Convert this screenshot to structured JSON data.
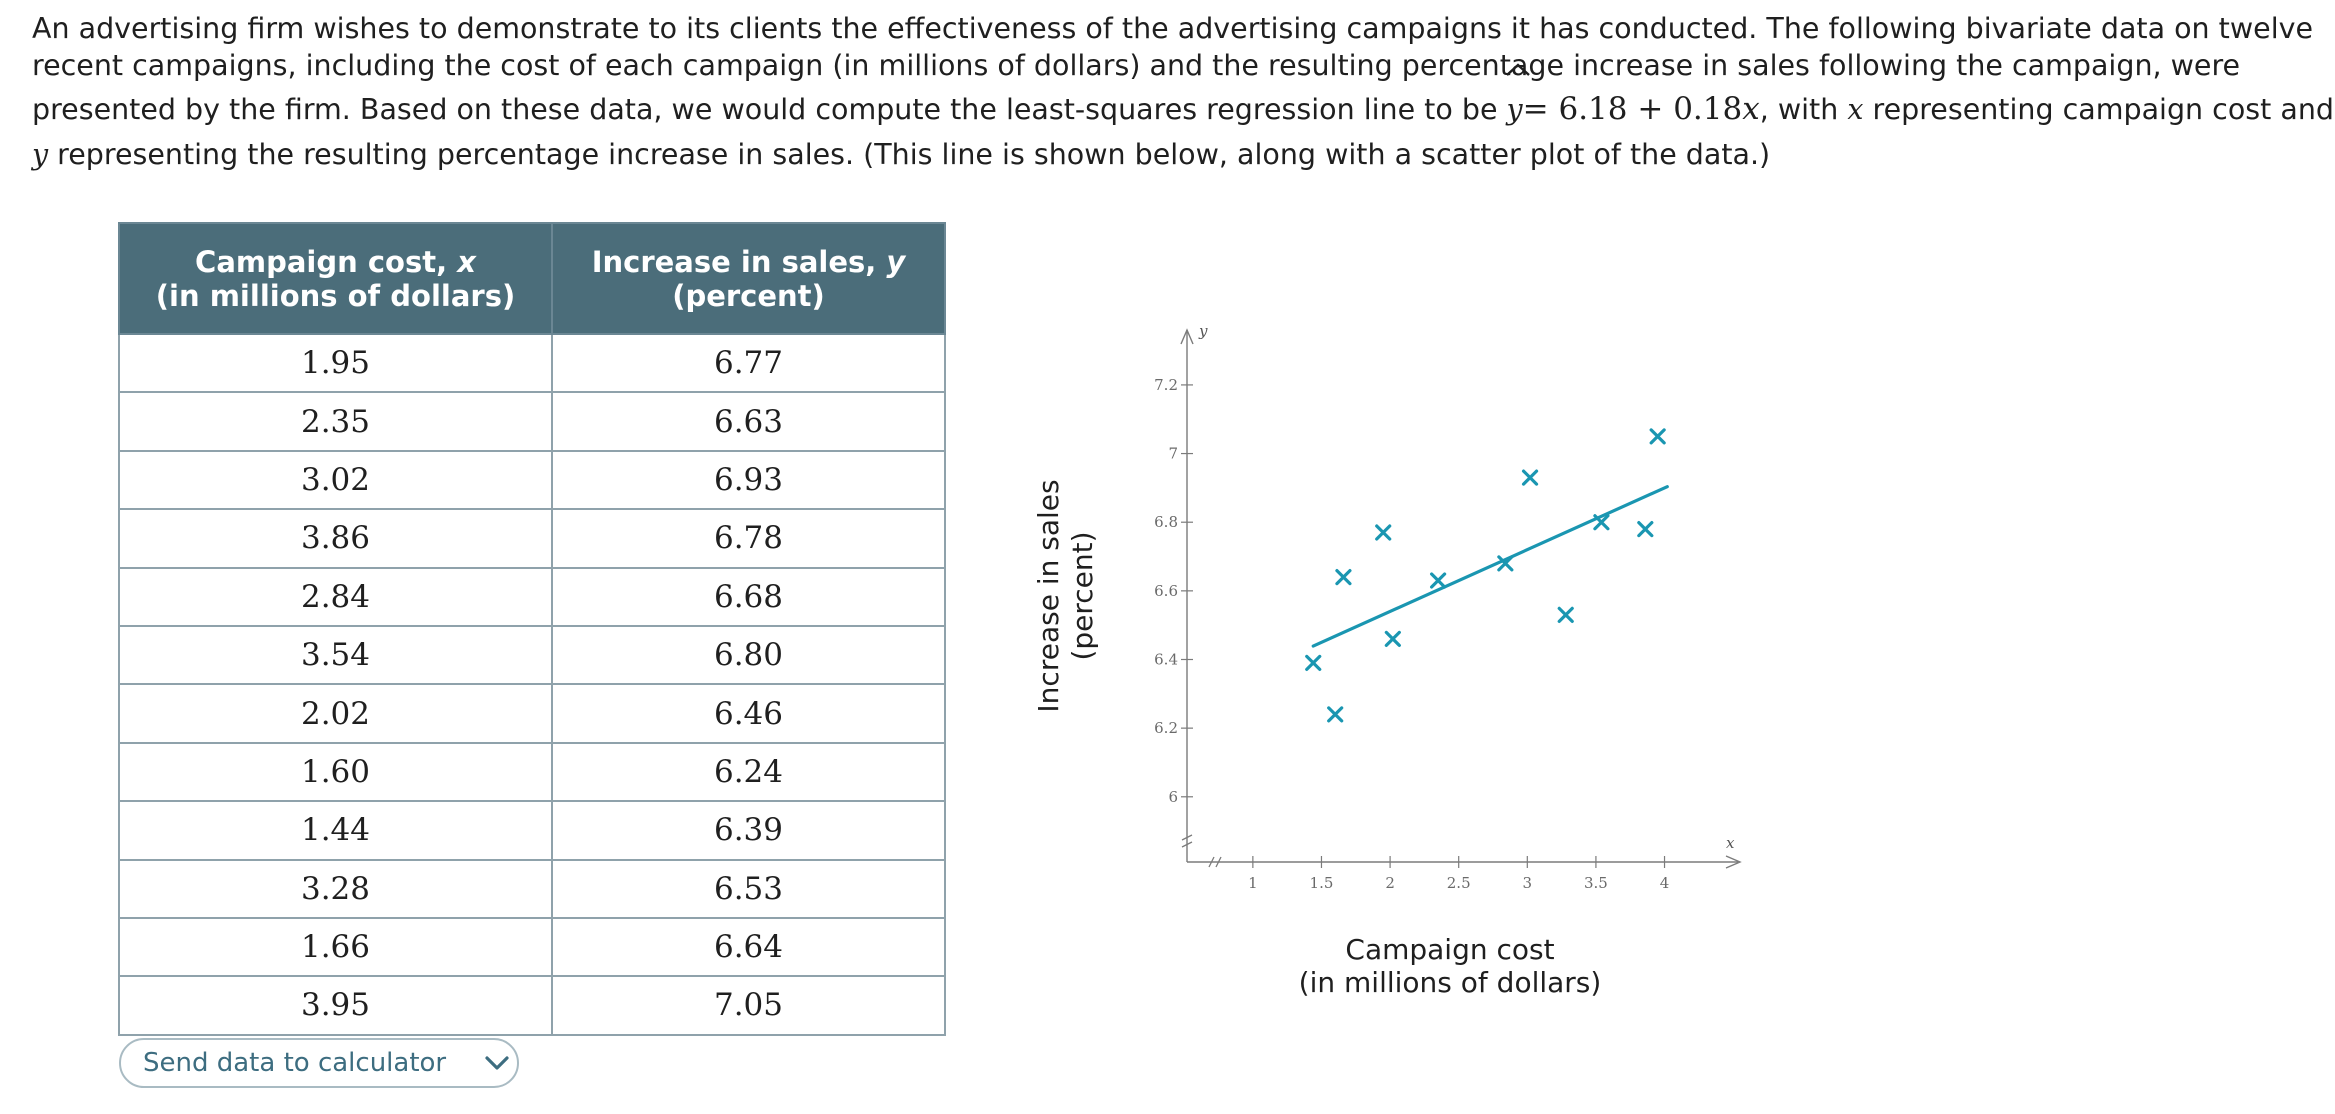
{
  "problem": {
    "line1": "An advertising firm wishes to demonstrate to its clients the effectiveness of the advertising campaigns it has conducted. The following bivariate data on twelve",
    "line2": "recent campaigns, including the cost of each campaign (in millions of dollars) and the resulting percentage increase in sales following the campaign, were",
    "line3a": "presented by the firm. Based on these data, we would compute the least-squares regression line to be",
    "yhat": "y",
    "equation": "= 6.18 + 0.18",
    "eq_var": "x",
    "line3b": ", with",
    "x_var": "x",
    "line3c": "representing campaign cost and",
    "y_var": "y",
    "line4": "representing the resulting percentage increase in sales. (This line is shown below, along with a scatter plot of the data.)"
  },
  "table": {
    "header_x_line1": "Campaign cost, ",
    "header_x_var": "x",
    "header_x_line2": "(in millions of dollars)",
    "header_y_line1": "Increase in sales, ",
    "header_y_var": "y",
    "header_y_line2": "(percent)",
    "rows": [
      {
        "x": "1.95",
        "y": "6.77"
      },
      {
        "x": "2.35",
        "y": "6.63"
      },
      {
        "x": "3.02",
        "y": "6.93"
      },
      {
        "x": "3.86",
        "y": "6.78"
      },
      {
        "x": "2.84",
        "y": "6.68"
      },
      {
        "x": "3.54",
        "y": "6.80"
      },
      {
        "x": "2.02",
        "y": "6.46"
      },
      {
        "x": "1.60",
        "y": "6.24"
      },
      {
        "x": "1.44",
        "y": "6.39"
      },
      {
        "x": "3.28",
        "y": "6.53"
      },
      {
        "x": "1.66",
        "y": "6.64"
      },
      {
        "x": "3.95",
        "y": "7.05"
      }
    ]
  },
  "send_button": {
    "label": "Send data to calculator",
    "icon": "chevron-down-icon"
  },
  "colors": {
    "accent": "#1a96b1",
    "table_header": "#4b6d7a",
    "axis": "#7b7b7b",
    "button_text": "#3d6d80"
  },
  "chart_data": {
    "type": "scatter",
    "title": "",
    "xlabel_line1": "Campaign cost",
    "xlabel_line2": "(in millions of dollars)",
    "ylabel_line1": "Increase in sales",
    "ylabel_line2": "(percent)",
    "x_axis_var": "x",
    "y_axis_var": "y",
    "x_ticks": [
      1,
      1.5,
      2,
      2.5,
      3,
      3.5,
      4
    ],
    "x_tick_labels": [
      "1",
      "1.5",
      "2",
      "2.5",
      "3",
      "3.5",
      "4"
    ],
    "y_ticks": [
      6,
      6.2,
      6.4,
      6.6,
      6.8,
      7,
      7.2
    ],
    "y_tick_labels": [
      "6",
      "6.2",
      "6.4",
      "6.6",
      "6.8",
      "7",
      "7.2"
    ],
    "xlim": [
      0.52,
      4.55
    ],
    "ylim": [
      5.81,
      7.36
    ],
    "axis_break": true,
    "series": [
      {
        "name": "campaigns",
        "marker": "x",
        "x": [
          1.95,
          2.35,
          3.02,
          3.86,
          2.84,
          3.54,
          2.02,
          1.6,
          1.44,
          3.28,
          1.66,
          3.95
        ],
        "y": [
          6.77,
          6.63,
          6.93,
          6.78,
          6.68,
          6.8,
          6.46,
          6.24,
          6.39,
          6.53,
          6.64,
          7.05
        ]
      }
    ],
    "regression_line": {
      "intercept": 6.18,
      "slope": 0.18,
      "x_from": 1.44,
      "x_to": 4.02
    }
  }
}
